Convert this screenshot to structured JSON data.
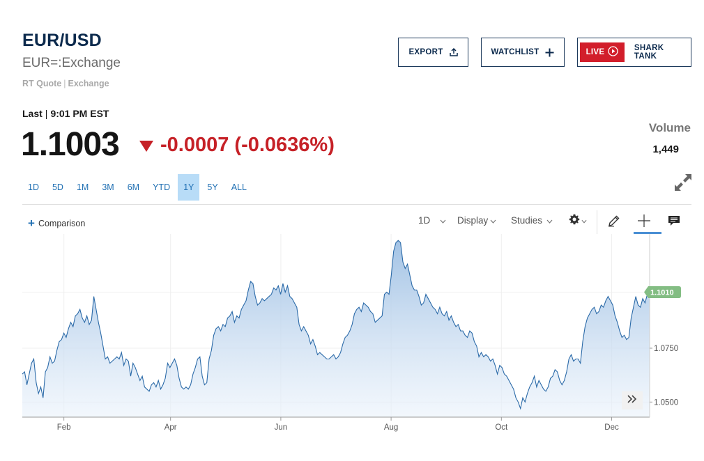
{
  "header": {
    "symbol": "EUR/USD",
    "exchange": "EUR=:Exchange",
    "quote_type": "RT Quote",
    "quote_source": "Exchange"
  },
  "buttons": {
    "export": "EXPORT",
    "watchlist": "WATCHLIST",
    "live": "LIVE",
    "shark_tank": "SHARK TANK"
  },
  "quote": {
    "last_label": "Last",
    "time": "9:01 PM EST",
    "price": "1.1003",
    "change": "-0.0007 (-0.0636%)",
    "direction": "down",
    "change_color": "#c62127"
  },
  "volume": {
    "label": "Volume",
    "value": "1,449"
  },
  "ranges": {
    "items": [
      "1D",
      "5D",
      "1M",
      "3M",
      "6M",
      "YTD",
      "1Y",
      "5Y",
      "ALL"
    ],
    "active": "1Y"
  },
  "toolbar": {
    "comparison": "Comparison",
    "interval": "1D",
    "display": "Display",
    "studies": "Studies"
  },
  "icons": [
    "export-icon",
    "plus-icon",
    "play-icon",
    "expand-icon",
    "gear-icon",
    "pencil-icon",
    "crosshair-icon",
    "comment-icon",
    "double-chevron-right-icon"
  ],
  "chart_data": {
    "type": "area",
    "x_start": "2023-01-09",
    "x_end": "2023-12-22",
    "xlim": [
      "2023-01-09",
      "2023-12-22"
    ],
    "x_ticks": [
      {
        "label": "Feb",
        "date": "2023-02-01"
      },
      {
        "label": "Apr",
        "date": "2023-04-01"
      },
      {
        "label": "Jun",
        "date": "2023-06-01"
      },
      {
        "label": "Aug",
        "date": "2023-08-01"
      },
      {
        "label": "Oct",
        "date": "2023-10-01"
      },
      {
        "label": "Dec",
        "date": "2023-12-01"
      }
    ],
    "y_ticks": [
      1.05,
      1.075
    ],
    "ylim": [
      1.043,
      1.128
    ],
    "last_label": "1.1010",
    "last_value": 1.101,
    "series": [
      {
        "values": [
          1.063,
          1.064,
          1.058,
          1.063,
          1.068,
          1.07,
          1.059,
          1.054,
          1.057,
          1.052,
          1.064,
          1.066,
          1.071,
          1.068,
          1.069,
          1.074,
          1.078,
          1.079,
          1.082,
          1.08,
          1.084,
          1.087,
          1.085,
          1.09,
          1.091,
          1.093,
          1.089,
          1.087,
          1.09,
          1.086,
          1.088,
          1.099,
          1.093,
          1.087,
          1.082,
          1.076,
          1.07,
          1.071,
          1.068,
          1.069,
          1.07,
          1.071,
          1.07,
          1.073,
          1.067,
          1.07,
          1.069,
          1.062,
          1.068,
          1.066,
          1.063,
          1.06,
          1.062,
          1.057,
          1.056,
          1.055,
          1.058,
          1.059,
          1.057,
          1.06,
          1.056,
          1.058,
          1.061,
          1.068,
          1.066,
          1.068,
          1.07,
          1.067,
          1.061,
          1.057,
          1.056,
          1.057,
          1.056,
          1.058,
          1.063,
          1.066,
          1.07,
          1.071,
          1.062,
          1.058,
          1.059,
          1.07,
          1.074,
          1.081,
          1.084,
          1.085,
          1.083,
          1.086,
          1.085,
          1.089,
          1.09,
          1.092,
          1.087,
          1.09,
          1.089,
          1.093,
          1.095,
          1.097,
          1.102,
          1.106,
          1.105,
          1.099,
          1.095,
          1.096,
          1.098,
          1.097,
          1.098,
          1.099,
          1.1,
          1.103,
          1.102,
          1.104,
          1.1,
          1.105,
          1.101,
          1.104,
          1.099,
          1.098,
          1.096,
          1.094,
          1.086,
          1.083,
          1.085,
          1.083,
          1.081,
          1.077,
          1.079,
          1.076,
          1.072,
          1.073,
          1.072,
          1.071,
          1.07,
          1.07,
          1.071,
          1.072,
          1.07,
          1.071,
          1.073,
          1.077,
          1.08,
          1.081,
          1.083,
          1.086,
          1.091,
          1.093,
          1.094,
          1.092,
          1.096,
          1.095,
          1.094,
          1.092,
          1.091,
          1.087,
          1.088,
          1.089,
          1.09,
          1.1,
          1.101,
          1.1,
          1.109,
          1.12,
          1.124,
          1.125,
          1.124,
          1.115,
          1.112,
          1.114,
          1.109,
          1.104,
          1.102,
          1.102,
          1.099,
          1.095,
          1.096,
          1.1,
          1.098,
          1.096,
          1.094,
          1.093,
          1.091,
          1.094,
          1.091,
          1.09,
          1.092,
          1.088,
          1.09,
          1.087,
          1.085,
          1.086,
          1.083,
          1.083,
          1.081,
          1.08,
          1.083,
          1.082,
          1.078,
          1.076,
          1.071,
          1.073,
          1.071,
          1.072,
          1.071,
          1.069,
          1.07,
          1.067,
          1.063,
          1.067,
          1.066,
          1.063,
          1.062,
          1.06,
          1.058,
          1.056,
          1.052,
          1.05,
          1.047,
          1.052,
          1.05,
          1.054,
          1.057,
          1.059,
          1.062,
          1.057,
          1.06,
          1.058,
          1.056,
          1.055,
          1.057,
          1.061,
          1.062,
          1.065,
          1.064,
          1.06,
          1.058,
          1.06,
          1.064,
          1.07,
          1.072,
          1.069,
          1.07,
          1.07,
          1.068,
          1.078,
          1.085,
          1.089,
          1.091,
          1.093,
          1.094,
          1.091,
          1.092,
          1.095,
          1.094,
          1.097,
          1.099,
          1.097,
          1.095,
          1.09,
          1.087,
          1.083,
          1.08,
          1.081,
          1.079,
          1.08,
          1.089,
          1.094,
          1.099,
          1.095,
          1.094,
          1.098,
          1.096,
          1.1,
          1.101
        ]
      }
    ],
    "fill_color": "#a7c6e6",
    "line_color": "#2b6aa8",
    "grid": true
  }
}
